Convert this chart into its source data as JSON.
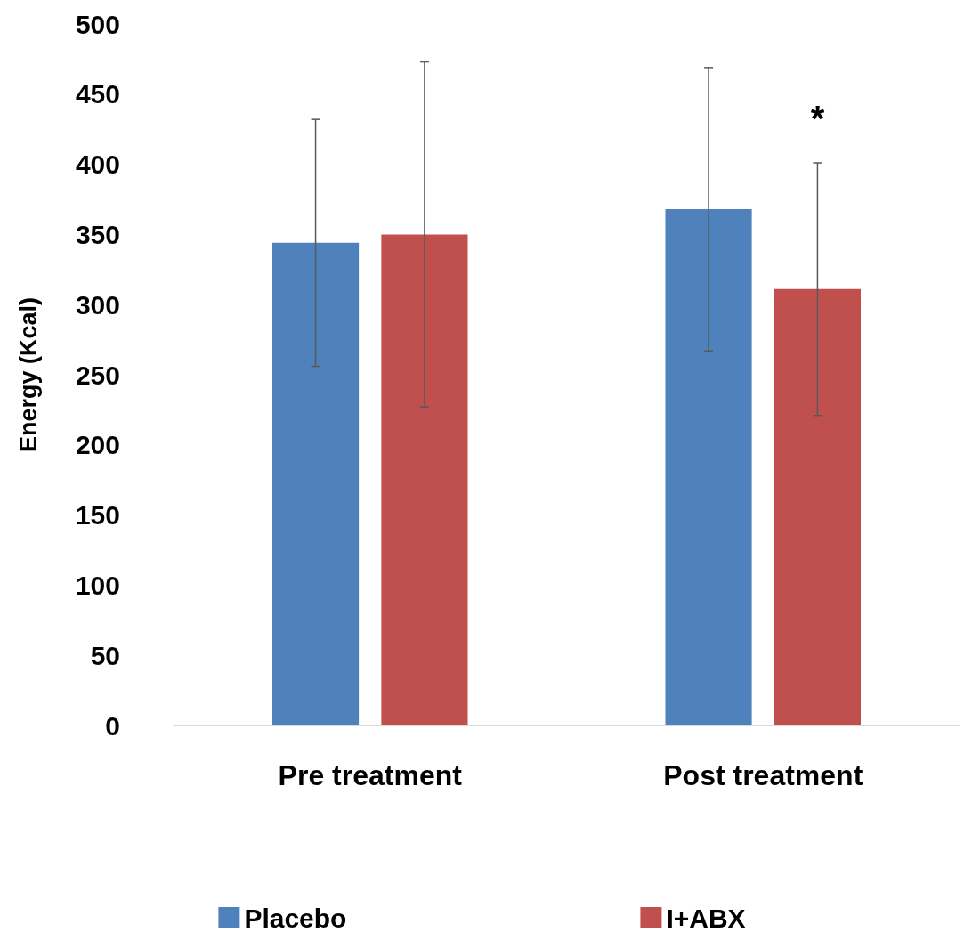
{
  "chart_data": {
    "type": "bar",
    "ylabel": "Energy (Kcal)",
    "categories": [
      "Pre treatment",
      "Post treatment"
    ],
    "series": [
      {
        "name": "Placebo",
        "color": "#4f81bd",
        "values": [
          344,
          368
        ],
        "errors": [
          88,
          101
        ]
      },
      {
        "name": "I+ABX",
        "color": "#c0504d",
        "values": [
          350,
          311
        ],
        "errors": [
          123,
          90
        ]
      }
    ],
    "ylim": [
      0,
      500
    ],
    "yticks": [
      0,
      50,
      100,
      150,
      200,
      250,
      300,
      350,
      400,
      450,
      500
    ],
    "annotations": [
      "*"
    ],
    "grid": false,
    "legend": "bottom"
  }
}
